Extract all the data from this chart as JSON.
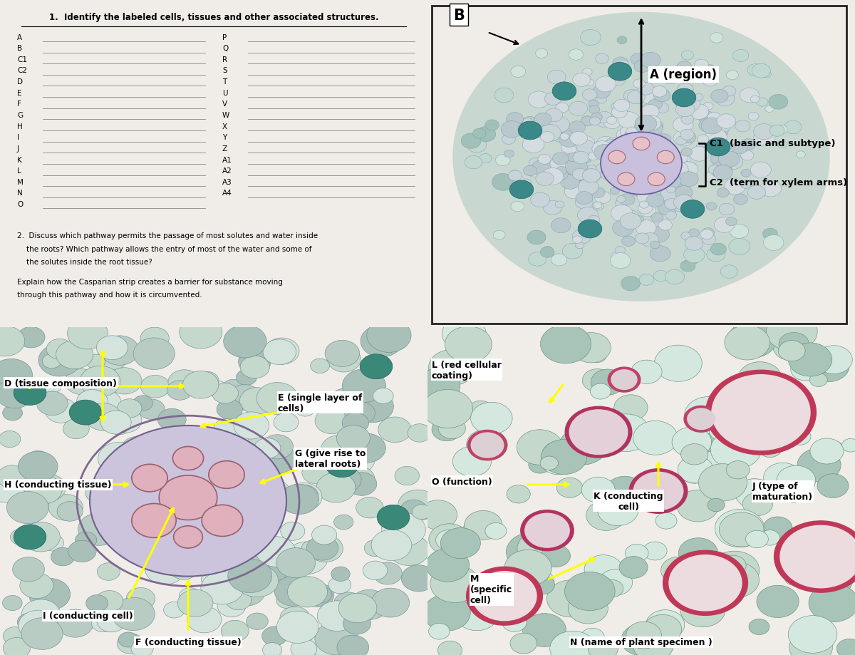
{
  "bg_color": "#f0ede8",
  "title1": "1.  Identify the labeled cells, tissues and other associated structures.",
  "left_labels": [
    "A",
    "B",
    "C1",
    "C2",
    "D",
    "E",
    "F",
    "G",
    "H",
    "I",
    "J",
    "K",
    "L",
    "M",
    "N",
    "O"
  ],
  "right_labels": [
    "P",
    "Q",
    "R",
    "S",
    "T",
    "U",
    "V",
    "W",
    "X",
    "Y",
    "Z",
    "A1",
    "A2",
    "A3",
    "A4"
  ],
  "question2_line1": "2.  Discuss which pathway permits the passage of most solutes and water inside",
  "question2_line2": "    the roots? Which pathway allows the entry of most of the water and some of",
  "question2_line3": "    the solutes inside the root tissue?",
  "question2_explain1": "Explain how the Casparian strip creates a barrier for substance moving",
  "question2_explain2": "through this pathway and how it is circumvented."
}
